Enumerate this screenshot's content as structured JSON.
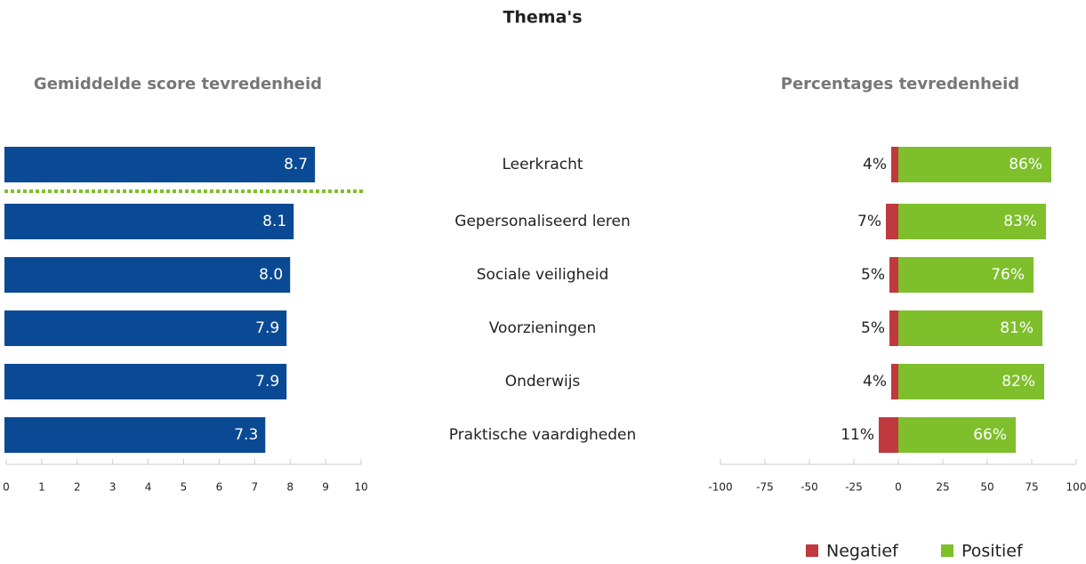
{
  "title": "Thema's",
  "chart_data": [
    {
      "type": "hbar",
      "title": "Gemiddelde score tevredenheid",
      "categories": [
        "Leerkracht",
        "Gepersonaliseerd leren",
        "Sociale veiligheid",
        "Voorzieningen",
        "Onderwijs",
        "Praktische vaardigheden"
      ],
      "values": [
        8.7,
        8.1,
        8.0,
        7.9,
        7.9,
        7.3
      ],
      "value_labels": [
        "8.7",
        "8.1",
        "8.0",
        "7.9",
        "7.9",
        "7.3"
      ],
      "color": "#0a4a94",
      "xlim": [
        0,
        10
      ],
      "xticks": [
        0,
        1,
        2,
        3,
        4,
        5,
        6,
        7,
        8,
        9,
        10
      ]
    },
    {
      "type": "diverging",
      "title": "Percentages tevredenheid",
      "series": [
        {
          "name": "Negatief",
          "color": "#c0393f",
          "values": [
            4,
            7,
            5,
            5,
            4,
            11
          ],
          "value_labels": [
            "4%",
            "7%",
            "5%",
            "5%",
            "4%",
            "11%"
          ]
        },
        {
          "name": "Positief",
          "color": "#7ebf2b",
          "values": [
            86,
            83,
            76,
            81,
            82,
            66
          ],
          "value_labels": [
            "86%",
            "83%",
            "76%",
            "81%",
            "82%",
            "66%"
          ]
        }
      ],
      "xlim": [
        -100,
        100
      ],
      "xticks": [
        -100,
        -75,
        -50,
        -25,
        0,
        25,
        50,
        75,
        100
      ],
      "legend": "bottom-right"
    }
  ]
}
